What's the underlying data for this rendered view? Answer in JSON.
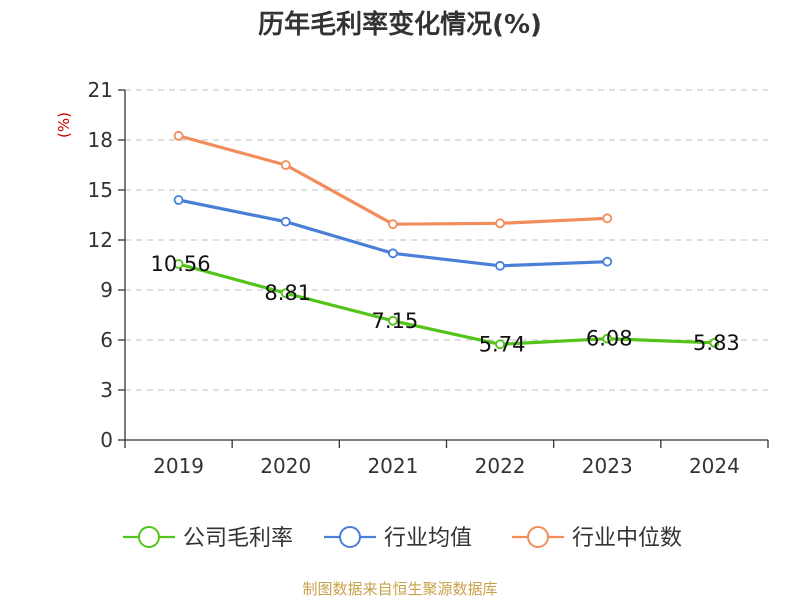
{
  "chart_data": {
    "type": "line",
    "title": "历年毛利率变化情况(%)",
    "ylabel": "(%)",
    "xlabel": "",
    "categories": [
      "2019",
      "2020",
      "2021",
      "2022",
      "2023",
      "2024"
    ],
    "ylim": [
      0,
      21
    ],
    "yticks": [
      0,
      3,
      6,
      9,
      12,
      15,
      18,
      21
    ],
    "grid": true,
    "legend_position": "bottom",
    "series": [
      {
        "name": "公司毛利率",
        "color": "#52c41a",
        "values": [
          10.56,
          8.81,
          7.15,
          5.74,
          6.08,
          5.83
        ],
        "labels": [
          "10.56",
          "8.81",
          "7.15",
          "5.74",
          "6.08",
          "5.83"
        ]
      },
      {
        "name": "行业均值",
        "color": "#4a7fd8",
        "values": [
          14.4,
          13.1,
          11.2,
          10.45,
          10.7,
          null
        ]
      },
      {
        "name": "行业中位数",
        "color": "#f28c5a",
        "values": [
          18.25,
          16.5,
          12.95,
          13.0,
          13.3,
          null
        ]
      }
    ]
  },
  "source": "制图数据来自恒生聚源数据库"
}
